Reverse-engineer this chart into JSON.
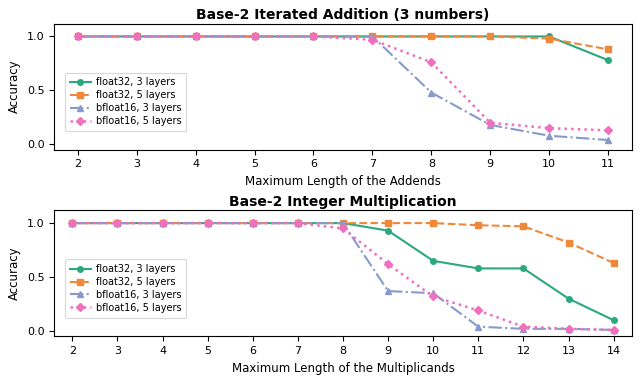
{
  "top": {
    "title": "Base-2 Iterated Addition (3 numbers)",
    "xlabel": "Maximum Length of the Addends",
    "ylabel": "Accuracy",
    "x": [
      2,
      3,
      4,
      5,
      6,
      7,
      8,
      9,
      10,
      11
    ],
    "float32_3": [
      1.0,
      1.0,
      1.0,
      1.0,
      1.0,
      1.0,
      1.0,
      1.0,
      1.0,
      0.78
    ],
    "float32_5": [
      1.0,
      1.0,
      1.0,
      1.0,
      1.0,
      1.0,
      1.0,
      1.0,
      0.98,
      0.88
    ],
    "bfloat16_3": [
      1.0,
      1.0,
      1.0,
      1.0,
      1.0,
      1.0,
      0.48,
      0.18,
      0.08,
      0.04
    ],
    "bfloat16_5": [
      1.0,
      1.0,
      1.0,
      1.0,
      1.0,
      0.97,
      0.76,
      0.2,
      0.15,
      0.13
    ],
    "xlim": [
      1.6,
      11.4
    ],
    "ylim": [
      -0.05,
      1.12
    ]
  },
  "bottom": {
    "title": "Base-2 Integer Multiplication",
    "xlabel": "Maximum Length of the Multiplicands",
    "ylabel": "Accuracy",
    "x": [
      2,
      3,
      4,
      5,
      6,
      7,
      8,
      9,
      10,
      11,
      12,
      13,
      14
    ],
    "float32_3": [
      1.0,
      1.0,
      1.0,
      1.0,
      1.0,
      1.0,
      1.0,
      0.93,
      0.65,
      0.58,
      0.58,
      0.3,
      0.1
    ],
    "float32_5": [
      1.0,
      1.0,
      1.0,
      1.0,
      1.0,
      1.0,
      1.0,
      1.0,
      1.0,
      0.98,
      0.97,
      0.82,
      0.63
    ],
    "bfloat16_3": [
      1.0,
      1.0,
      1.0,
      1.0,
      1.0,
      1.0,
      1.0,
      0.37,
      0.35,
      0.04,
      0.02,
      0.02,
      0.01
    ],
    "bfloat16_5": [
      1.0,
      1.0,
      1.0,
      1.0,
      1.0,
      1.0,
      0.95,
      0.62,
      0.32,
      0.19,
      0.04,
      0.02,
      0.01
    ],
    "xlim": [
      1.6,
      14.4
    ],
    "ylim": [
      -0.05,
      1.12
    ]
  },
  "colors": {
    "float32_3": "#2ca87f",
    "float32_5": "#f0883a",
    "bfloat16_3": "#8899cc",
    "bfloat16_5": "#f070c0"
  },
  "labels": {
    "float32_3": "float32, 3 layers",
    "float32_5": "float32, 5 layers",
    "bfloat16_3": "bfloat16, 3 layers",
    "bfloat16_5": "bfloat16, 5 layers"
  },
  "figsize": [
    6.4,
    3.83
  ],
  "dpi": 100
}
